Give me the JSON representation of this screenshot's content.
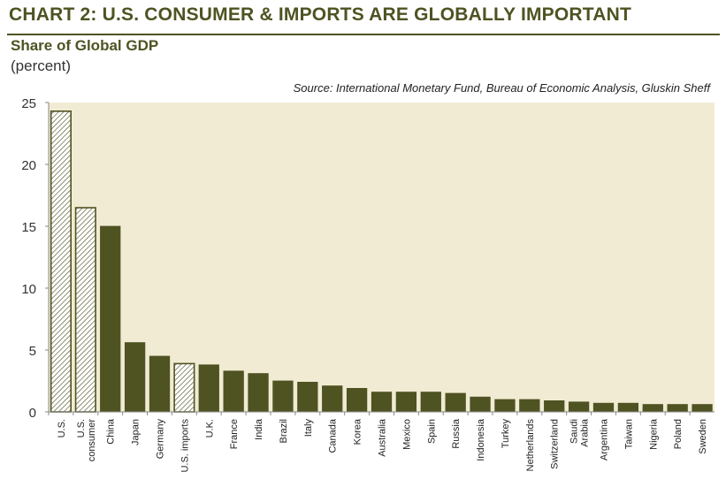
{
  "chart_data": {
    "type": "bar",
    "title": "CHART 2: U.S. CONSUMER & IMPORTS ARE GLOBALLY IMPORTANT",
    "subtitle": "Share of Global GDP",
    "unit": "(percent)",
    "source": "Source: International Monetary Fund, Bureau of Economic Analysis, Gluskin Sheff",
    "xlabel": "",
    "ylabel": "",
    "ylim": [
      0,
      25
    ],
    "yticks": [
      "0",
      "5",
      "10",
      "15",
      "20",
      "25"
    ],
    "grid": false,
    "categories": [
      [
        "U.S."
      ],
      [
        "U.S.",
        "consumer"
      ],
      [
        "China"
      ],
      [
        "Japan"
      ],
      [
        "Germany"
      ],
      [
        "U.S. imports"
      ],
      [
        "U.K."
      ],
      [
        "France"
      ],
      [
        "India"
      ],
      [
        "Brazil"
      ],
      [
        "Italy"
      ],
      [
        "Canada"
      ],
      [
        "Korea"
      ],
      [
        "Australia"
      ],
      [
        "Mexico"
      ],
      [
        "Spain"
      ],
      [
        "Russia"
      ],
      [
        "Indonesia"
      ],
      [
        "Turkey"
      ],
      [
        "Netherlands"
      ],
      [
        "Switzerland"
      ],
      [
        "Saudi",
        "Arabia"
      ],
      [
        "Argentina"
      ],
      [
        "Taiwan"
      ],
      [
        "Nigeria"
      ],
      [
        "Poland"
      ],
      [
        "Sweden"
      ]
    ],
    "values": [
      24.3,
      16.5,
      15.0,
      5.6,
      4.5,
      3.9,
      3.8,
      3.3,
      3.1,
      2.5,
      2.4,
      2.1,
      1.9,
      1.6,
      1.6,
      1.6,
      1.5,
      1.2,
      1.0,
      1.0,
      0.9,
      0.8,
      0.7,
      0.7,
      0.6,
      0.6,
      0.6
    ],
    "hatched": [
      true,
      true,
      false,
      false,
      false,
      true,
      false,
      false,
      false,
      false,
      false,
      false,
      false,
      false,
      false,
      false,
      false,
      false,
      false,
      false,
      false,
      false,
      false,
      false,
      false,
      false,
      false
    ],
    "colors": {
      "bar": "#4f5322",
      "plot_background": "#f1ebd3",
      "hatch_background": "#ffffff",
      "title": "#4f5322"
    }
  }
}
